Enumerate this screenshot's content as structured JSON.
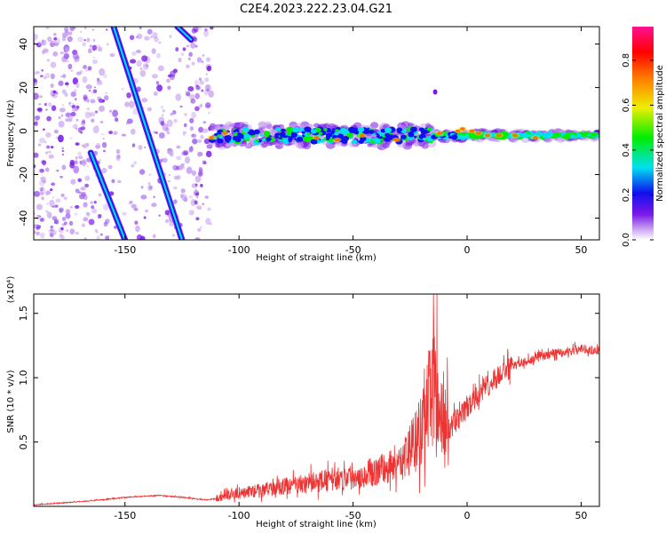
{
  "title": "C2E4.2023.222.23.04.G21",
  "colors": {
    "snr_line": "#ee3333",
    "frame": "#000000"
  },
  "chart_data": [
    {
      "type": "heatmap",
      "title": "C2E4.2023.222.23.04.G21",
      "xlabel": "Height of straight line (km)",
      "ylabel": "Frequency (Hz)",
      "xlim": [
        -190,
        58
      ],
      "ylim": [
        -50,
        48
      ],
      "xticks": [
        "-150",
        "-100",
        "-50",
        "0",
        "50"
      ],
      "yticks": [
        "-40",
        "-20",
        "0",
        "20",
        "40"
      ],
      "colorbar": {
        "label": "Normalized spectral amplitude",
        "range": [
          0,
          0.95
        ],
        "ticks": [
          "0.0",
          "0.2",
          "0.4",
          "0.6",
          "0.8"
        ],
        "colormap": [
          "#ffffff",
          "#c9a3ef",
          "#7a18e8",
          "#1010ee",
          "#00e0f0",
          "#00ee00",
          "#eeee00",
          "#ff7a00",
          "#ff0000",
          "#ff1090"
        ]
      },
      "features": [
        {
          "name": "diagonal track 1",
          "x": [
            -155,
            -125
          ],
          "y": [
            48,
            -50
          ]
        },
        {
          "name": "diagonal track 2",
          "x": [
            -165,
            -150
          ],
          "y": [
            -10,
            -50
          ]
        },
        {
          "name": "diagonal track 3",
          "x": [
            -127,
            -121
          ],
          "y": [
            48,
            42
          ]
        },
        {
          "name": "signal band",
          "x": [
            -112,
            58
          ],
          "y_center": -2
        }
      ]
    },
    {
      "type": "line",
      "xlabel": "Height of straight line (km)",
      "ylabel": "SNR (10 * v/v)",
      "scale_label": "(x10⁴)",
      "xlim": [
        -190,
        58
      ],
      "ylim": [
        0,
        1.65
      ],
      "xticks": [
        "-150",
        "-100",
        "-50",
        "0",
        "50"
      ],
      "yticks": [
        "0.5",
        "1.0",
        "1.5"
      ],
      "series": [
        {
          "x": [
            -190,
            -175,
            -160,
            -150,
            -140,
            -135,
            -125,
            -115,
            -110,
            -105,
            -100,
            -90,
            -80,
            -70,
            -60,
            -50,
            -40,
            -30,
            -25,
            -20,
            -17,
            -15,
            -13,
            -10,
            -5,
            0,
            5,
            10,
            15,
            20,
            25,
            30,
            40,
            50,
            58
          ],
          "y": [
            0.01,
            0.03,
            0.05,
            0.07,
            0.08,
            0.085,
            0.07,
            0.05,
            0.06,
            0.08,
            0.1,
            0.12,
            0.15,
            0.17,
            0.2,
            0.22,
            0.26,
            0.32,
            0.4,
            0.55,
            0.75,
            0.9,
            0.7,
            0.55,
            0.65,
            0.75,
            0.85,
            0.95,
            1.02,
            1.08,
            1.12,
            1.15,
            1.19,
            1.22,
            1.21
          ]
        }
      ]
    }
  ]
}
